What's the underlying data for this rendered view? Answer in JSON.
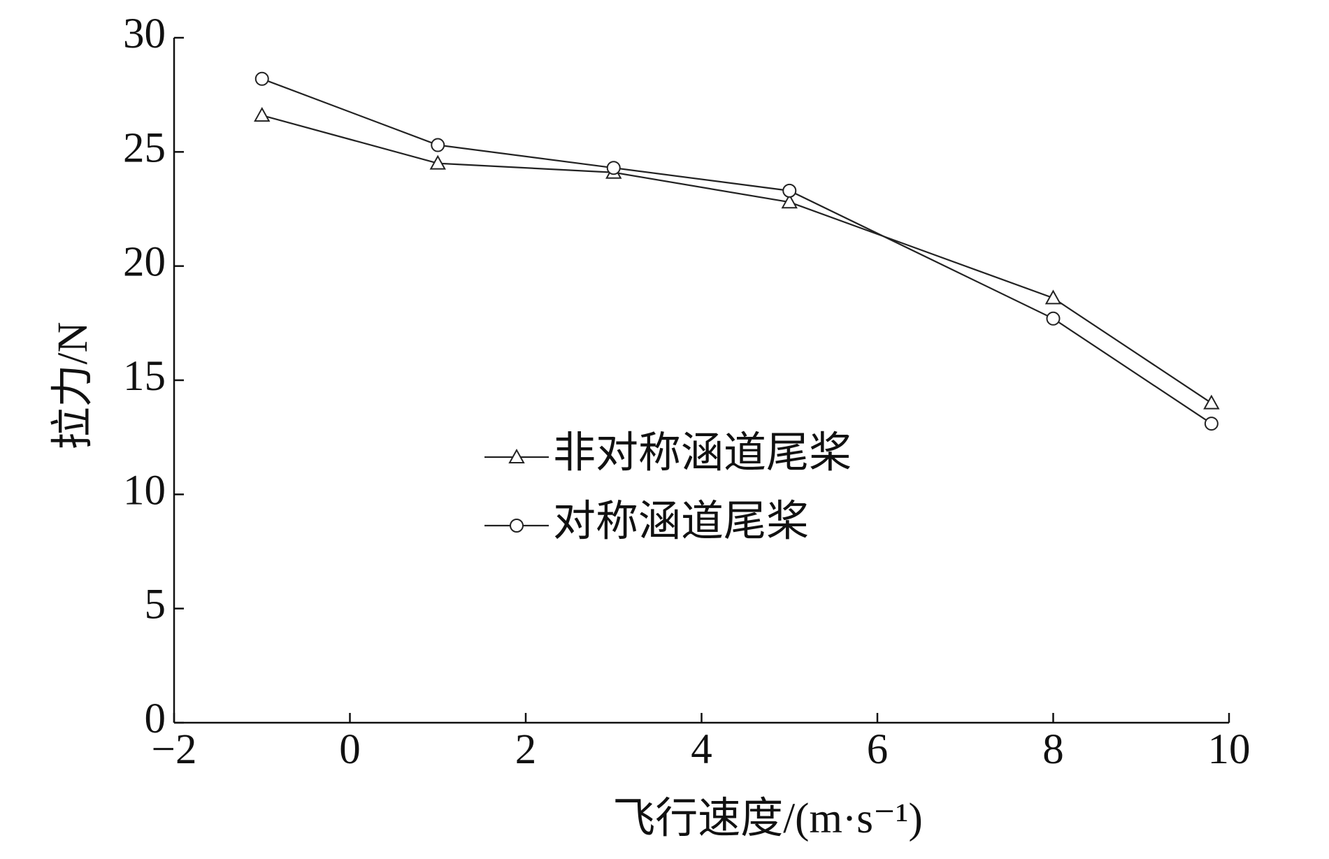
{
  "chart_data": {
    "type": "line",
    "x_label": "飞行速度/(m·s⁻¹)",
    "y_label": "拉力/N",
    "xlim": [
      -2,
      10
    ],
    "xticks": [
      {
        "value": -2,
        "label": "−2"
      },
      0,
      2,
      4,
      6,
      8,
      10
    ],
    "ylim": [
      0,
      30
    ],
    "yticks": [
      0,
      5,
      10,
      15,
      20,
      25,
      30
    ],
    "legend": "center",
    "series": [
      {
        "name": "非对称涵道尾桨",
        "color": "#222222",
        "marker": "triangle",
        "x": [
          -1,
          1,
          3,
          5,
          8,
          9.8
        ],
        "values": [
          26.6,
          24.5,
          24.1,
          22.8,
          18.6,
          14.0
        ]
      },
      {
        "name": "对称涵道尾桨",
        "color": "#222222",
        "marker": "circle",
        "x": [
          -1,
          1,
          3,
          5,
          8,
          9.8
        ],
        "values": [
          28.2,
          25.3,
          24.3,
          23.3,
          17.7,
          13.1
        ]
      }
    ]
  }
}
